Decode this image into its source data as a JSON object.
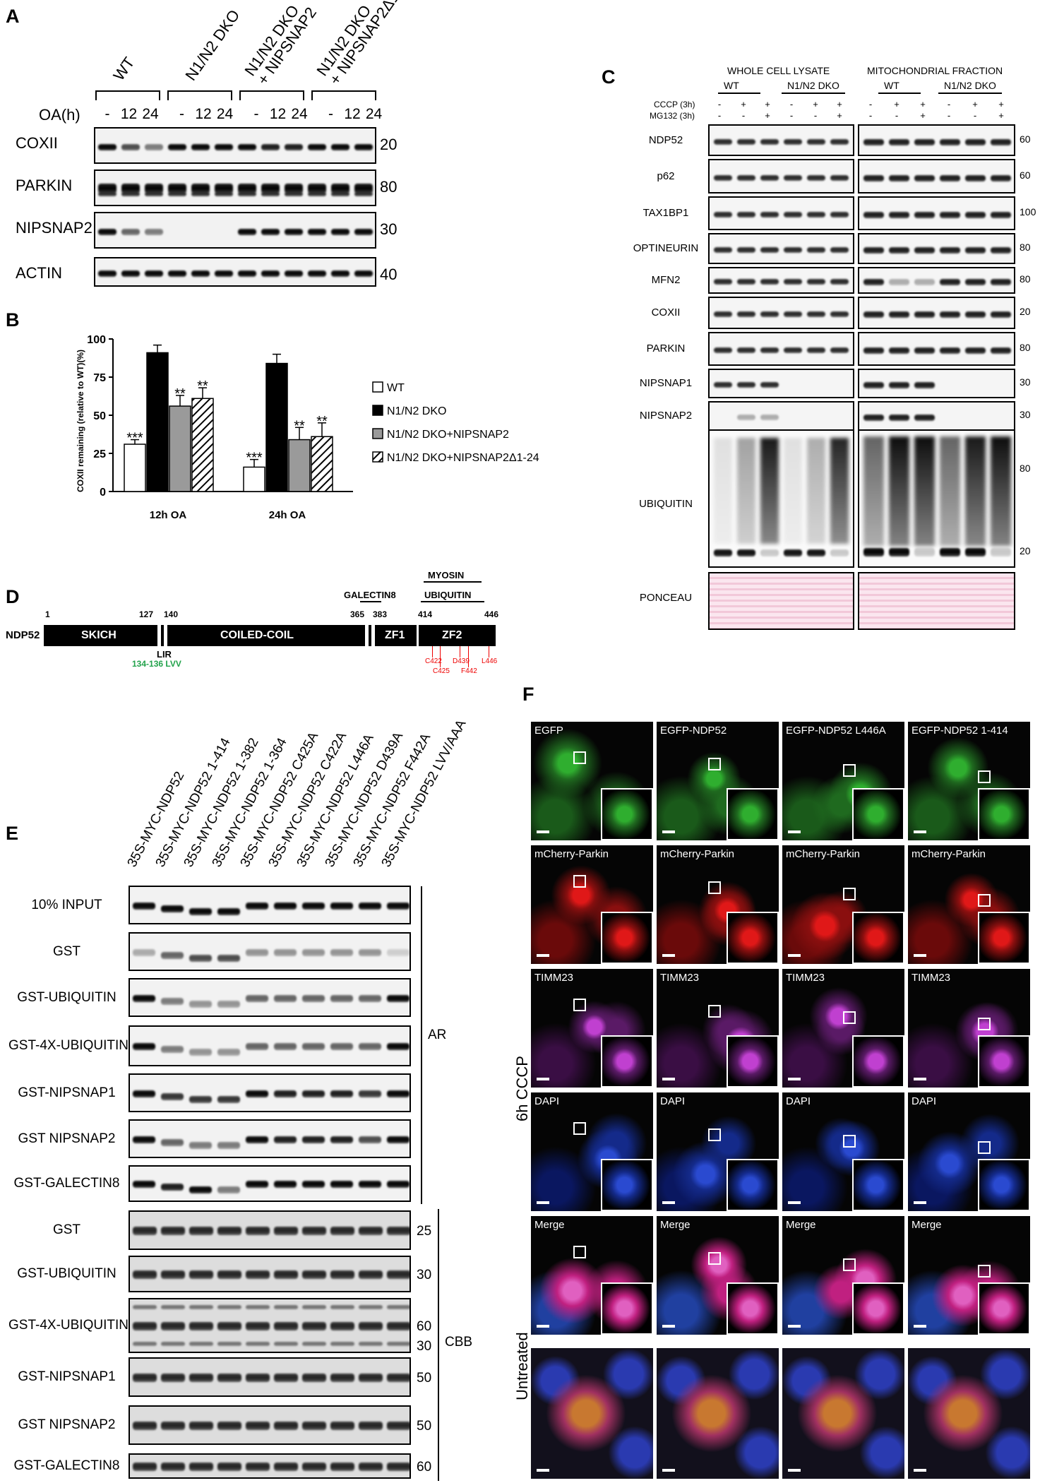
{
  "panelA": {
    "label": "A",
    "oa_label": "OA(h)",
    "groups": [
      "WT",
      "N1/N2 DKO",
      "N1/N2 DKO\n+ NIPSNAP2",
      "N1/N2 DKO\n+ NIPSNAP2Δ1-24"
    ],
    "group1": "WT",
    "group2": "N1/N2 DKO",
    "group3a": "N1/N2 DKO",
    "group3b": "+ NIPSNAP2",
    "group4a": "N1/N2 DKO",
    "group4b": "+ NIPSNAP2Δ1-24",
    "times": [
      "-",
      "12",
      "24",
      "-",
      "12",
      "24",
      "-",
      "12",
      "24",
      "-",
      "12",
      "24"
    ],
    "rows": [
      {
        "name": "COXII",
        "mw": "20"
      },
      {
        "name": "PARKIN",
        "mw": "80"
      },
      {
        "name": "NIPSNAP2",
        "mw": "30"
      },
      {
        "name": "ACTIN",
        "mw": "40"
      }
    ]
  },
  "panelB": {
    "label": "B",
    "chart_data": {
      "type": "bar",
      "ylabel": "COXII remaining (relative to WT)(%)",
      "ylim": [
        0,
        100
      ],
      "yticks": [
        "0",
        "25",
        "50",
        "75",
        "100"
      ],
      "categories": [
        "12h OA",
        "24h OA"
      ],
      "series": [
        {
          "name": "WT",
          "values": [
            31,
            16
          ],
          "errors": [
            3,
            5
          ],
          "sig": [
            "***",
            "***"
          ],
          "color": "#ffffff"
        },
        {
          "name": "N1/N2 DKO",
          "values": [
            91,
            84
          ],
          "errors": [
            5,
            6
          ],
          "sig": [
            "",
            ""
          ],
          "color": "#000000"
        },
        {
          "name": "N1/N2 DKO+NIPSNAP2",
          "values": [
            56,
            34
          ],
          "errors": [
            7,
            8
          ],
          "sig": [
            "**",
            "**"
          ],
          "color": "#9a9a9a"
        },
        {
          "name": "N1/N2 DKO+NIPSNAP2Δ1-24",
          "values": [
            61,
            36
          ],
          "errors": [
            7,
            9
          ],
          "sig": [
            "**",
            "**"
          ],
          "color": "hatch"
        }
      ]
    }
  },
  "panelC": {
    "label": "C",
    "header1": "WHOLE CELL LYSATE",
    "header2": "MITOCHONDRIAL FRACTION",
    "wt": "WT",
    "dko": "N1/N2 DKO",
    "cccp": "CCCP (3h)",
    "mg132": "MG132 (3h)",
    "cccp_signs": [
      "-",
      "+",
      "+",
      "-",
      "+",
      "+",
      "-",
      "+",
      "+",
      "-",
      "+",
      "+"
    ],
    "mg_signs": [
      "-",
      "-",
      "+",
      "-",
      "-",
      "+",
      "-",
      "-",
      "+",
      "-",
      "-",
      "+"
    ],
    "rows": [
      {
        "name": "NDP52",
        "mw": "60"
      },
      {
        "name": "p62",
        "mw": "60"
      },
      {
        "name": "TAX1BP1",
        "mw": "100"
      },
      {
        "name": "OPTINEURIN",
        "mw": "80"
      },
      {
        "name": "MFN2",
        "mw": "80"
      },
      {
        "name": "COXII",
        "mw": "20"
      },
      {
        "name": "PARKIN",
        "mw": "80"
      },
      {
        "name": "NIPSNAP1",
        "mw": "30"
      },
      {
        "name": "NIPSNAP2",
        "mw": "30"
      }
    ],
    "ubiquitin": {
      "name": "UBIQUITIN",
      "mw1": "80",
      "mw2": "20"
    },
    "ponceau": "PONCEAU"
  },
  "panelD": {
    "label": "D",
    "protein": "NDP52",
    "start": "1",
    "end": "446",
    "p127": "127",
    "p140": "140",
    "p365": "365",
    "p383": "383",
    "p414": "414",
    "skich": "SKICH",
    "coiled": "COILED-COIL",
    "zf1": "ZF1",
    "zf2": "ZF2",
    "lir": "LIR",
    "lir_res": "134-136 LVV",
    "galectin": "GALECTIN8",
    "myosin": "MYOSIN",
    "ubiquitin": "UBIQUITIN",
    "mut1": "C422",
    "mut2": "C425",
    "mut3": "D439",
    "mut4": "F442",
    "mut5": "L446"
  },
  "panelE": {
    "label": "E",
    "lanes": [
      "35S-MYC-NDP52",
      "35S-MYC-NDP52 1-414",
      "35S-MYC-NDP52 1-382",
      "35S-MYC-NDP52 1-364",
      "35S-MYC-NDP52 C425A",
      "35S-MYC-NDP52 C422A",
      "35S-MYC-NDP52 L446A",
      "35S-MYC-NDP52 D439A",
      "35S-MYC-NDP52 F442A",
      "35S-MYC-NDP52 LVV/AAA"
    ],
    "ar_rows": [
      "10% INPUT",
      "GST",
      "GST-UBIQUITIN",
      "GST-4X-UBIQUITIN",
      "GST-NIPSNAP1",
      "GST NIPSNAP2",
      "GST-GALECTIN8"
    ],
    "cbb_rows": [
      {
        "name": "GST",
        "mw": "25"
      },
      {
        "name": "GST-UBIQUITIN",
        "mw": "30"
      },
      {
        "name": "GST-4X-UBIQUITIN",
        "mw": "60",
        "mw2": "30"
      },
      {
        "name": "GST-NIPSNAP1",
        "mw": "50"
      },
      {
        "name": "GST NIPSNAP2",
        "mw": "50"
      },
      {
        "name": "GST-GALECTIN8",
        "mw": "60"
      }
    ],
    "ar": "AR",
    "cbb": "CBB"
  },
  "panelF": {
    "label": "F",
    "columns": [
      "EGFP",
      "EGFP-NDP52",
      "EGFP-NDP52 L446A",
      "EGFP-NDP52 1-414"
    ],
    "row_labels": [
      "mCherry-Parkin",
      "TIMM23",
      "DAPI",
      "Merge"
    ],
    "cccp": "6h CCCP",
    "untreated": "Untreated"
  }
}
